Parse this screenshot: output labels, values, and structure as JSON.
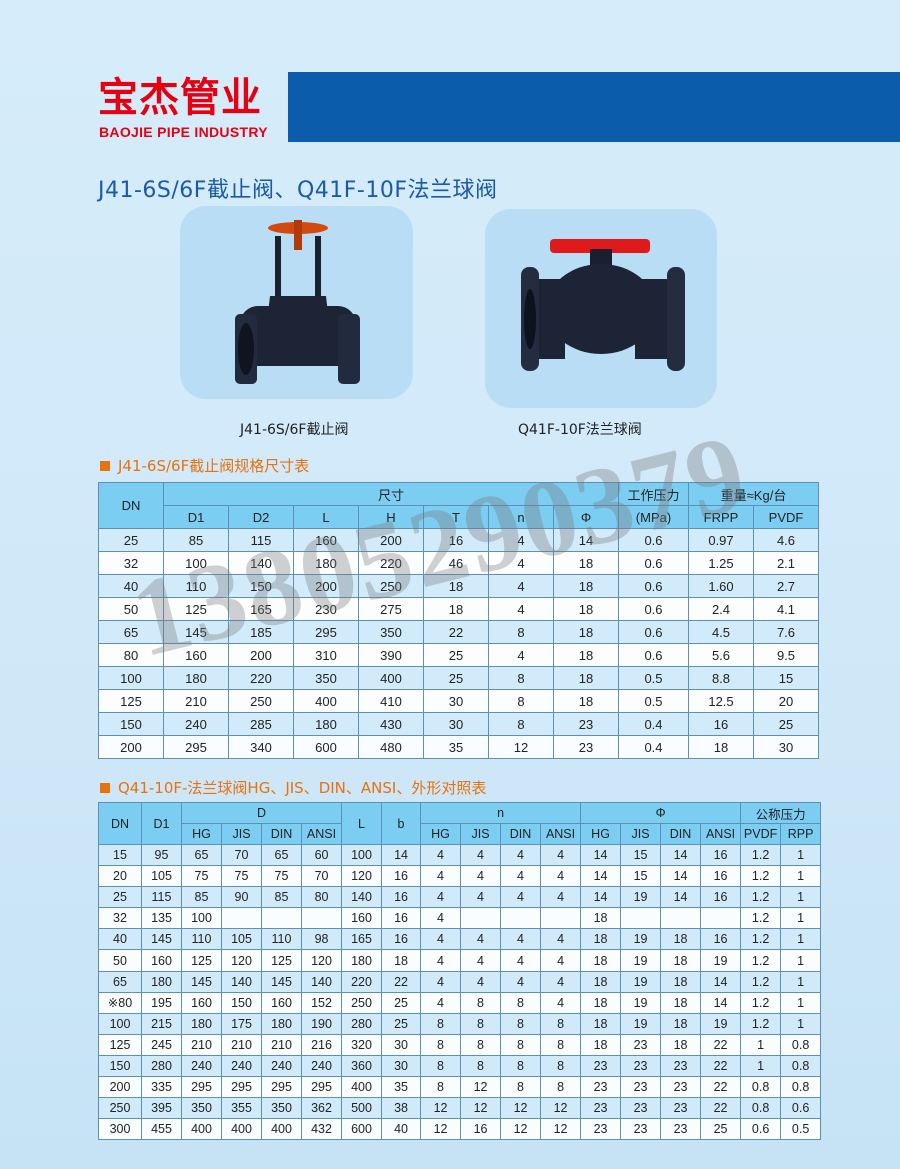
{
  "header": {
    "brand_cn": "宝杰管业",
    "brand_en": "BAOJIE PIPE INDUSTRY",
    "brand_color": "#e60012",
    "banner_color": "#0b5caa"
  },
  "title": "J41-6S/6F截止阀、Q41F-10F法兰球阀",
  "products": [
    {
      "caption": "J41-6S/6F截止阀",
      "icon": "globe-valve"
    },
    {
      "caption": "Q41F-10F法兰球阀",
      "icon": "ball-valve"
    }
  ],
  "watermark": "13805290379",
  "table1": {
    "heading": "J41-6S/6F截止阀规格尺寸表",
    "header": {
      "dn": "DN",
      "size": "尺寸",
      "pressure": "工作压力",
      "pressure_unit": "(MPa)",
      "weight": "重量≈Kg/台",
      "size_cols": [
        "D1",
        "D2",
        "L",
        "H",
        "T",
        "n",
        "Φ"
      ],
      "weight_cols": [
        "FRPP",
        "PVDF"
      ]
    },
    "rows": [
      [
        "25",
        "85",
        "115",
        "160",
        "200",
        "16",
        "4",
        "14",
        "0.6",
        "0.97",
        "4.6"
      ],
      [
        "32",
        "100",
        "140",
        "180",
        "220",
        "46",
        "4",
        "18",
        "0.6",
        "1.25",
        "2.1"
      ],
      [
        "40",
        "110",
        "150",
        "200",
        "250",
        "18",
        "4",
        "18",
        "0.6",
        "1.60",
        "2.7"
      ],
      [
        "50",
        "125",
        "165",
        "230",
        "275",
        "18",
        "4",
        "18",
        "0.6",
        "2.4",
        "4.1"
      ],
      [
        "65",
        "145",
        "185",
        "295",
        "350",
        "22",
        "8",
        "18",
        "0.6",
        "4.5",
        "7.6"
      ],
      [
        "80",
        "160",
        "200",
        "310",
        "390",
        "25",
        "4",
        "18",
        "0.6",
        "5.6",
        "9.5"
      ],
      [
        "100",
        "180",
        "220",
        "350",
        "400",
        "25",
        "8",
        "18",
        "0.5",
        "8.8",
        "15"
      ],
      [
        "125",
        "210",
        "250",
        "400",
        "410",
        "30",
        "8",
        "18",
        "0.5",
        "12.5",
        "20"
      ],
      [
        "150",
        "240",
        "285",
        "180",
        "430",
        "30",
        "8",
        "23",
        "0.4",
        "16",
        "25"
      ],
      [
        "200",
        "295",
        "340",
        "600",
        "480",
        "35",
        "12",
        "23",
        "0.4",
        "18",
        "30"
      ]
    ]
  },
  "table2": {
    "heading": "Q41-10F-法兰球阀HG、JIS、DIN、ANSI、外形对照表",
    "header": {
      "dn": "DN",
      "d1": "D1",
      "d": "D",
      "l": "L",
      "b": "b",
      "n": "n",
      "phi": "Φ",
      "pressure": "公称压力",
      "std_cols": [
        "HG",
        "JIS",
        "DIN",
        "ANSI"
      ],
      "pressure_cols": [
        "PVDF",
        "RPP"
      ]
    },
    "rows": [
      [
        "15",
        "95",
        "65",
        "70",
        "65",
        "60",
        "100",
        "14",
        "4",
        "4",
        "4",
        "4",
        "14",
        "15",
        "14",
        "16",
        "1.2",
        "1"
      ],
      [
        "20",
        "105",
        "75",
        "75",
        "75",
        "70",
        "120",
        "16",
        "4",
        "4",
        "4",
        "4",
        "14",
        "15",
        "14",
        "16",
        "1.2",
        "1"
      ],
      [
        "25",
        "115",
        "85",
        "90",
        "85",
        "80",
        "140",
        "16",
        "4",
        "4",
        "4",
        "4",
        "14",
        "19",
        "14",
        "16",
        "1.2",
        "1"
      ],
      [
        "32",
        "135",
        "100",
        "",
        "",
        "",
        "160",
        "16",
        "4",
        "",
        "",
        "",
        "18",
        "",
        "",
        "",
        "1.2",
        "1"
      ],
      [
        "40",
        "145",
        "110",
        "105",
        "110",
        "98",
        "165",
        "16",
        "4",
        "4",
        "4",
        "4",
        "18",
        "19",
        "18",
        "16",
        "1.2",
        "1"
      ],
      [
        "50",
        "160",
        "125",
        "120",
        "125",
        "120",
        "180",
        "18",
        "4",
        "4",
        "4",
        "4",
        "18",
        "19",
        "18",
        "19",
        "1.2",
        "1"
      ],
      [
        "65",
        "180",
        "145",
        "140",
        "145",
        "140",
        "220",
        "22",
        "4",
        "4",
        "4",
        "4",
        "18",
        "19",
        "18",
        "14",
        "1.2",
        "1"
      ],
      [
        "※80",
        "195",
        "160",
        "150",
        "160",
        "152",
        "250",
        "25",
        "4",
        "8",
        "8",
        "4",
        "18",
        "19",
        "18",
        "14",
        "1.2",
        "1"
      ],
      [
        "100",
        "215",
        "180",
        "175",
        "180",
        "190",
        "280",
        "25",
        "8",
        "8",
        "8",
        "8",
        "18",
        "19",
        "18",
        "19",
        "1.2",
        "1"
      ],
      [
        "125",
        "245",
        "210",
        "210",
        "210",
        "216",
        "320",
        "30",
        "8",
        "8",
        "8",
        "8",
        "18",
        "23",
        "18",
        "22",
        "1",
        "0.8"
      ],
      [
        "150",
        "280",
        "240",
        "240",
        "240",
        "240",
        "360",
        "30",
        "8",
        "8",
        "8",
        "8",
        "23",
        "23",
        "23",
        "22",
        "1",
        "0.8"
      ],
      [
        "200",
        "335",
        "295",
        "295",
        "295",
        "295",
        "400",
        "35",
        "8",
        "12",
        "8",
        "8",
        "23",
        "23",
        "23",
        "22",
        "0.8",
        "0.8"
      ],
      [
        "250",
        "395",
        "350",
        "355",
        "350",
        "362",
        "500",
        "38",
        "12",
        "12",
        "12",
        "12",
        "23",
        "23",
        "23",
        "22",
        "0.8",
        "0.6"
      ],
      [
        "300",
        "455",
        "400",
        "400",
        "400",
        "432",
        "600",
        "40",
        "12",
        "16",
        "12",
        "12",
        "23",
        "23",
        "23",
        "25",
        "0.6",
        "0.5"
      ]
    ]
  }
}
